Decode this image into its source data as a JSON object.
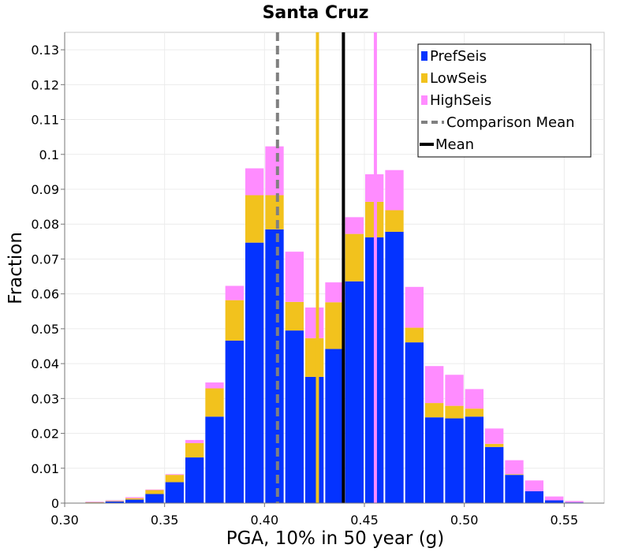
{
  "chart_data": {
    "type": "bar",
    "title": "Santa Cruz",
    "xlabel": "PGA, 10% in 50 year (g)",
    "ylabel": "Fraction",
    "xlim": [
      0.3,
      0.57
    ],
    "ylim": [
      0,
      0.135
    ],
    "x_ticks": [
      {
        "value": 0.3,
        "label": "0.30"
      },
      {
        "value": 0.35,
        "label": "0.35"
      },
      {
        "value": 0.4,
        "label": "0.40"
      },
      {
        "value": 0.45,
        "label": "0.45"
      },
      {
        "value": 0.5,
        "label": "0.50"
      },
      {
        "value": 0.55,
        "label": "0.55"
      }
    ],
    "y_ticks": [
      {
        "value": 0,
        "label": "0"
      },
      {
        "value": 0.01,
        "label": "0.01"
      },
      {
        "value": 0.02,
        "label": "0.02"
      },
      {
        "value": 0.03,
        "label": "0.03"
      },
      {
        "value": 0.04,
        "label": "0.04"
      },
      {
        "value": 0.05,
        "label": "0.05"
      },
      {
        "value": 0.06,
        "label": "0.06"
      },
      {
        "value": 0.07,
        "label": "0.07"
      },
      {
        "value": 0.08,
        "label": "0.08"
      },
      {
        "value": 0.09,
        "label": "0.09"
      },
      {
        "value": 0.1,
        "label": "0.1"
      },
      {
        "value": 0.11,
        "label": "0.11"
      },
      {
        "value": 0.12,
        "label": "0.12"
      },
      {
        "value": 0.13,
        "label": "0.13"
      }
    ],
    "bin_width": 0.01,
    "bins": [
      0.305,
      0.315,
      0.325,
      0.335,
      0.345,
      0.355,
      0.365,
      0.375,
      0.385,
      0.395,
      0.405,
      0.415,
      0.425,
      0.435,
      0.445,
      0.455,
      0.465,
      0.475,
      0.485,
      0.495,
      0.505,
      0.515,
      0.525,
      0.535,
      0.545,
      0.555
    ],
    "series": [
      {
        "name": "PrefSeis",
        "color": "#0433ff",
        "values": [
          0,
          0.0002,
          0.0005,
          0.001,
          0.0026,
          0.006,
          0.0131,
          0.0248,
          0.0466,
          0.0747,
          0.0785,
          0.0495,
          0.0362,
          0.0442,
          0.0636,
          0.0762,
          0.0778,
          0.0461,
          0.0246,
          0.0243,
          0.0248,
          0.0161,
          0.0081,
          0.0034,
          0.0008,
          0.0002
        ]
      },
      {
        "name": "LowSeis",
        "color": "#f2c21d",
        "values": [
          0,
          0.0001,
          0.0001,
          0.0004,
          0.0012,
          0.0021,
          0.0041,
          0.0081,
          0.0116,
          0.0136,
          0.0098,
          0.0082,
          0.0111,
          0.0134,
          0.0136,
          0.0102,
          0.0062,
          0.0042,
          0.0041,
          0.0036,
          0.0023,
          0.0009,
          0.0002,
          0,
          0,
          0
        ]
      },
      {
        "name": "HighSeis",
        "color": "#ff8cff",
        "values": [
          0.0001,
          0.0001,
          0.0002,
          0.0003,
          0.0001,
          0.0002,
          0.0009,
          0.0017,
          0.0041,
          0.0077,
          0.014,
          0.0144,
          0.0088,
          0.0057,
          0.0048,
          0.0079,
          0.0115,
          0.0117,
          0.0106,
          0.0089,
          0.0056,
          0.0044,
          0.004,
          0.0031,
          0.0011,
          0.0004
        ]
      }
    ],
    "vertical_lines": [
      {
        "name": "Comparison Mean",
        "x": 0.4065,
        "color": "#808080",
        "style": "dashed"
      },
      {
        "name": "Mean",
        "x": 0.4395,
        "color": "#000000",
        "style": "solid"
      },
      {
        "name": "LowSeis Mean",
        "x": 0.4265,
        "color": "#f2c21d",
        "style": "solid"
      },
      {
        "name": "HighSeis Mean",
        "x": 0.4555,
        "color": "#ff8cff",
        "style": "solid"
      }
    ],
    "legend": {
      "position": "top-right",
      "entries": [
        {
          "label": "PrefSeis",
          "kind": "box",
          "color": "#0433ff"
        },
        {
          "label": "LowSeis",
          "kind": "box",
          "color": "#f2c21d"
        },
        {
          "label": "HighSeis",
          "kind": "box",
          "color": "#ff8cff"
        },
        {
          "label": "Comparison Mean",
          "kind": "dashed-line",
          "color": "#808080"
        },
        {
          "label": "Mean",
          "kind": "line",
          "color": "#000000"
        }
      ]
    }
  }
}
